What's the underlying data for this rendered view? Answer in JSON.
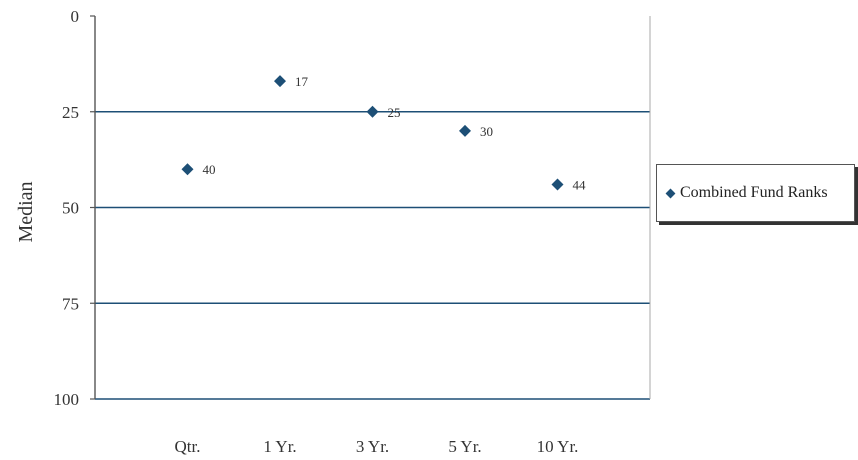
{
  "chart_data": {
    "type": "scatter",
    "title": "",
    "xlabel": "",
    "ylabel": "Median",
    "categories": [
      "Qtr.",
      "1  Yr.",
      "3 Yr.",
      "5 Yr.",
      "10 Yr."
    ],
    "series": [
      {
        "name": "Combined Fund Ranks",
        "values": [
          40,
          17,
          25,
          30,
          44
        ]
      }
    ],
    "ylim": [
      0,
      100
    ],
    "y_inverted": true,
    "yticks": [
      0,
      25,
      50,
      75,
      100
    ],
    "grid": true,
    "legend_position": "right",
    "marker": "diamond",
    "data_labels": true,
    "colors": {
      "marker": "#1d4f76",
      "gridline": "#1d4f76",
      "axis": "#555555"
    }
  }
}
